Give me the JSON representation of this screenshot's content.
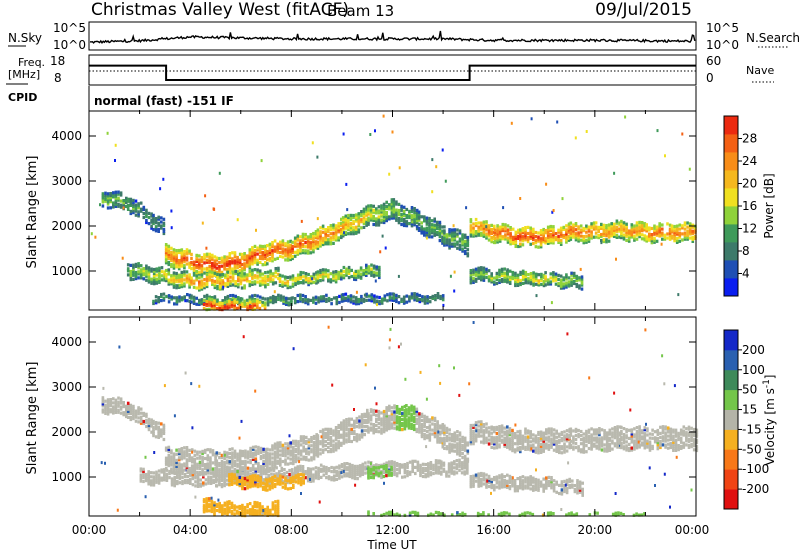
{
  "header": {
    "title": "Christmas Valley West (fitACF)",
    "beam": "Beam 13",
    "date": "09/Jul/2015"
  },
  "noise_panel": {
    "left_label": "N.Sky",
    "right_label": "N.Search",
    "left_tick_top": "10^5",
    "left_tick_bottom": "10^0",
    "right_tick_top": "10^5",
    "right_tick_bottom": "10^0"
  },
  "freq_panel": {
    "left_label_1": "Freq.",
    "left_label_2": "[MHz]",
    "right_label": "Nave",
    "left_ticks": [
      "18",
      "8"
    ],
    "right_ticks": [
      "60",
      "0"
    ]
  },
  "cpid_panel": {
    "label": "CPID",
    "text": "normal (fast) -151 IF"
  },
  "axes": {
    "ylabel": "Slant Range [km]",
    "xlabel": "Time UT",
    "yticks": [
      "1000",
      "2000",
      "3000",
      "4000"
    ],
    "xticks": [
      "00:00",
      "04:00",
      "08:00",
      "12:00",
      "16:00",
      "20:00",
      "00:00"
    ]
  },
  "power_colorbar": {
    "label": "Power [dB]",
    "ticks": [
      "4",
      "8",
      "12",
      "16",
      "20",
      "24",
      "28"
    ],
    "colors": [
      "#0a1ef0",
      "#1f4fb4",
      "#3d7a6a",
      "#3f9a5a",
      "#8fd23a",
      "#f0e020",
      "#f5b81e",
      "#f88d18",
      "#f46014",
      "#ec2a10"
    ]
  },
  "velocity_colorbar": {
    "label": "Velocity [m s",
    "label_sup": "-1",
    "label_end": "]",
    "ticks": [
      "200",
      "100",
      "50",
      "15",
      "-15",
      "-50",
      "-100",
      "-200"
    ],
    "colors": [
      "#1428c8",
      "#2a60b0",
      "#3e8a5a",
      "#74c64a",
      "#b4b4a8",
      "#f5b020",
      "#f87818",
      "#f04414",
      "#e01010"
    ]
  },
  "chart_data": [
    {
      "type": "line",
      "title": "N.Sky / N.Search",
      "x": [
        0,
        2,
        4,
        6,
        8,
        10,
        12,
        14,
        16,
        18,
        20,
        22,
        24
      ],
      "series": [
        {
          "name": "N.Sky",
          "values": [
            1.2,
            1.5,
            2.3,
            2.1,
            1.9,
            1.9,
            1.9,
            1.9,
            1.6,
            1.6,
            1.6,
            1.5,
            1.4
          ]
        }
      ],
      "ylim": [
        0,
        5
      ]
    },
    {
      "type": "line",
      "title": "Freq. [MHz]",
      "x": [
        0.0,
        3.05,
        3.05,
        15.05,
        15.05,
        24.0
      ],
      "series": [
        {
          "name": "Freq.",
          "values": [
            14.8,
            14.8,
            10.0,
            10.0,
            14.8,
            14.8
          ]
        }
      ],
      "ylim": [
        8,
        18
      ]
    },
    {
      "type": "heatmap",
      "title": "Power [dB]",
      "xlabel": "Time UT",
      "ylabel": "Slant Range [km]",
      "xlim": [
        0,
        24
      ],
      "ylim": [
        180,
        4600
      ],
      "colorbar_range": [
        0,
        30
      ],
      "bands": [
        {
          "t": [
            0.5,
            1.5,
            2.5,
            3.0
          ],
          "r": [
            2700,
            2600,
            2200,
            2000
          ],
          "w": 160,
          "power": [
            14,
            12,
            10,
            10
          ]
        },
        {
          "t": [
            3.0,
            4.0,
            5.0,
            6.0,
            7.0,
            8.0,
            9.0,
            10.0,
            11.0,
            12.0,
            13.0,
            14.0,
            15.0
          ],
          "r": [
            1450,
            1300,
            1200,
            1300,
            1500,
            1600,
            1800,
            2050,
            2300,
            2450,
            2200,
            1900,
            1650
          ],
          "w": 220,
          "power": [
            24,
            28,
            29,
            28,
            27,
            26,
            25,
            22,
            18,
            14,
            12,
            12,
            12
          ]
        },
        {
          "t": [
            1.5,
            3.0,
            4.0,
            6.0,
            7.5
          ],
          "r": [
            1100,
            950,
            850,
            900,
            950
          ],
          "w": 160,
          "power": [
            14,
            18,
            24,
            22,
            20
          ]
        },
        {
          "t": [
            7.5,
            9.0,
            10.5,
            11.5
          ],
          "r": [
            850,
            950,
            1050,
            1100
          ],
          "w": 120,
          "power": [
            20,
            18,
            16,
            14
          ]
        },
        {
          "t": [
            15.05,
            16.0,
            17.0,
            18.0,
            19.0,
            20.0,
            21.0,
            22.0,
            23.0,
            24.0
          ],
          "r": [
            2100,
            1950,
            1850,
            1850,
            1950,
            1950,
            2000,
            1950,
            1950,
            1950
          ],
          "w": 200,
          "power": [
            22,
            26,
            28,
            27,
            26,
            24,
            22,
            24,
            26,
            24
          ]
        },
        {
          "t": [
            15.05,
            16.5,
            18.0,
            19.5
          ],
          "r": [
            1000,
            950,
            900,
            850
          ],
          "w": 140,
          "power": [
            14,
            16,
            18,
            14
          ]
        },
        {
          "t": [
            2.5,
            4.0,
            6.0,
            8.0,
            10.0,
            12.0,
            14.0
          ],
          "r": [
            470,
            450,
            430,
            440,
            460,
            470,
            480
          ],
          "w": 70,
          "power": [
            10,
            12,
            14,
            12,
            10,
            10,
            10
          ]
        },
        {
          "t": [
            4.5,
            5.5,
            6.5,
            7.0
          ],
          "r": [
            320,
            280,
            270,
            280
          ],
          "w": 120,
          "power": [
            30,
            30,
            28,
            24
          ]
        }
      ]
    },
    {
      "type": "heatmap",
      "title": "Velocity [m s-1]",
      "xlabel": "Time UT",
      "ylabel": "Slant Range [km]",
      "xlim": [
        0,
        24
      ],
      "ylim": [
        180,
        4600
      ],
      "colorbar_range": [
        -200,
        200
      ],
      "bands": [
        {
          "t": [
            0.5,
            1.5,
            2.5,
            3.0
          ],
          "r": [
            2700,
            2600,
            2200,
            2000
          ],
          "w": 160,
          "velocity": [
            0,
            0,
            0,
            0
          ]
        },
        {
          "t": [
            3.0,
            5.0,
            7.0,
            9.0,
            11.0,
            12.5,
            14.0,
            15.0
          ],
          "r": [
            1500,
            1400,
            1500,
            1800,
            2300,
            2450,
            2000,
            1650
          ],
          "w": 260,
          "velocity": [
            0,
            0,
            0,
            0,
            0,
            40,
            0,
            0
          ]
        },
        {
          "t": [
            2.0,
            5.0,
            8.0,
            11.0,
            15.0
          ],
          "r": [
            1100,
            1050,
            1150,
            1250,
            1300
          ],
          "w": 150,
          "velocity": [
            0,
            0,
            0,
            0,
            0
          ]
        },
        {
          "t": [
            5.5,
            7.0,
            8.5
          ],
          "r": [
            1000,
            950,
            1000
          ],
          "w": 120,
          "velocity": [
            -60,
            -60,
            -60
          ]
        },
        {
          "t": [
            15.05,
            17.0,
            19.0,
            21.0,
            24.0
          ],
          "r": [
            2100,
            1900,
            1900,
            1950,
            1950
          ],
          "w": 240,
          "velocity": [
            0,
            0,
            0,
            0,
            0
          ]
        },
        {
          "t": [
            15.05,
            17.0,
            19.5
          ],
          "r": [
            1000,
            950,
            850
          ],
          "w": 140,
          "velocity": [
            0,
            0,
            0
          ]
        },
        {
          "t": [
            4.5,
            5.5,
            6.5,
            7.5
          ],
          "r": [
            420,
            350,
            320,
            350
          ],
          "w": 160,
          "velocity": [
            -60,
            -60,
            -60,
            -60
          ]
        },
        {
          "t": [
            11.0,
            11.5,
            12.0
          ],
          "r": [
            1150,
            1250,
            1200
          ],
          "w": 130,
          "velocity": [
            40,
            40,
            40
          ]
        },
        {
          "t": [
            11.0,
            14.0,
            18.0,
            22.0
          ],
          "r": [
            260,
            250,
            240,
            240
          ],
          "w": 40,
          "velocity": [
            40,
            40,
            40,
            40
          ]
        }
      ]
    }
  ]
}
